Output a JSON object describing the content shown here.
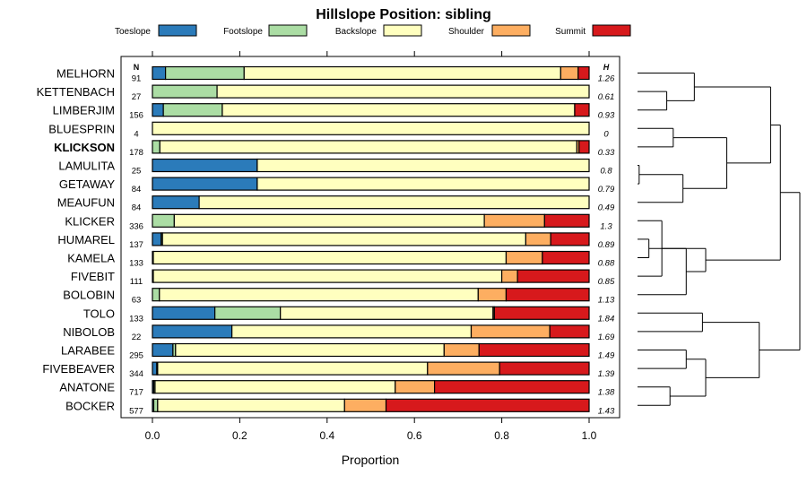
{
  "chart_data": {
    "type": "bar",
    "orientation": "horizontal",
    "stacked": true,
    "title": "Hillslope Position: sibling",
    "xlabel": "Proportion",
    "ylabel": "",
    "xlim": [
      0,
      1
    ],
    "xticks": [
      "0.0",
      "0.2",
      "0.4",
      "0.6",
      "0.8",
      "1.0"
    ],
    "n_header": "N",
    "h_header": "H",
    "highlighted": "KLICKSON",
    "legend_position": "top",
    "legend": [
      {
        "name": "Toeslope",
        "color": "#2b7bba"
      },
      {
        "name": "Footslope",
        "color": "#abdda4"
      },
      {
        "name": "Backslope",
        "color": "#ffffbf"
      },
      {
        "name": "Shoulder",
        "color": "#fdae61"
      },
      {
        "name": "Summit",
        "color": "#d7191c"
      }
    ],
    "categories": [
      "MELHORN",
      "KETTENBACH",
      "LIMBERJIM",
      "BLUESPRIN",
      "KLICKSON",
      "LAMULITA",
      "GETAWAY",
      "MEAUFUN",
      "KLICKER",
      "HUMAREL",
      "KAMELA",
      "FIVEBIT",
      "BOLOBIN",
      "TOLO",
      "NIBOLOB",
      "LARABEE",
      "FIVEBEAVER",
      "ANATONE",
      "BOCKER"
    ],
    "n": [
      "91",
      "27",
      "156",
      "4",
      "178",
      "25",
      "84",
      "84",
      "336",
      "137",
      "133",
      "111",
      "63",
      "133",
      "22",
      "295",
      "344",
      "717",
      "577"
    ],
    "h": [
      "1.26",
      "0.61",
      "0.93",
      "0",
      "0.33",
      "0.8",
      "0.79",
      "0.49",
      "1.3",
      "0.89",
      "0.88",
      "0.85",
      "1.13",
      "1.84",
      "1.69",
      "1.49",
      "1.39",
      "1.38",
      "1.43"
    ],
    "series": [
      {
        "name": "Toeslope",
        "values": [
          0.03,
          0,
          0.025,
          0,
          0,
          0.24,
          0.24,
          0.107,
          0,
          0.02,
          0,
          0,
          0,
          0.143,
          0.182,
          0.047,
          0.01,
          0.003,
          0.003
        ]
      },
      {
        "name": "Footslope",
        "values": [
          0.18,
          0.148,
          0.135,
          0,
          0.017,
          0,
          0,
          0,
          0.05,
          0.003,
          0.002,
          0.002,
          0.016,
          0.15,
          0,
          0.006,
          0.002,
          0.003,
          0.009
        ]
      },
      {
        "name": "Backslope",
        "values": [
          0.725,
          0.852,
          0.807,
          1,
          0.955,
          0.76,
          0.76,
          0.893,
          0.71,
          0.832,
          0.808,
          0.798,
          0.73,
          0.487,
          0.548,
          0.615,
          0.618,
          0.55,
          0.428
        ]
      },
      {
        "name": "Shoulder",
        "values": [
          0.04,
          0,
          0,
          0,
          0.005,
          0,
          0,
          0,
          0.138,
          0.057,
          0.083,
          0.036,
          0.064,
          0.003,
          0.18,
          0.08,
          0.165,
          0.09,
          0.095
        ]
      },
      {
        "name": "Summit",
        "values": [
          0.025,
          0,
          0.033,
          0,
          0.023,
          0,
          0,
          0,
          0.102,
          0.088,
          0.107,
          0.164,
          0.19,
          0.217,
          0.09,
          0.252,
          0.205,
          0.354,
          0.465
        ]
      }
    ],
    "dendrogram": {
      "merges": [
        [
          -6,
          -7,
          0.01
        ],
        [
          -2,
          -3,
          0.18
        ],
        [
          -4,
          -5,
          0.22
        ],
        [
          -10,
          -11,
          0.07
        ],
        [
          -9,
          -12,
          0.15
        ],
        [
          -18,
          -19,
          0.2
        ],
        [
          -16,
          -17,
          0.3
        ],
        [
          -14,
          -15,
          0.4
        ],
        [
          1,
          -8,
          0.28
        ],
        [
          -1,
          2,
          0.35
        ],
        [
          4,
          -13,
          0.3
        ],
        [
          5,
          11,
          0.42
        ],
        [
          6,
          7,
          0.42
        ],
        [
          3,
          9,
          0.55
        ],
        [
          10,
          14,
          0.82
        ],
        [
          8,
          13,
          0.75
        ],
        [
          15,
          12,
          0.88
        ],
        [
          16,
          17,
          1.0
        ]
      ]
    }
  }
}
